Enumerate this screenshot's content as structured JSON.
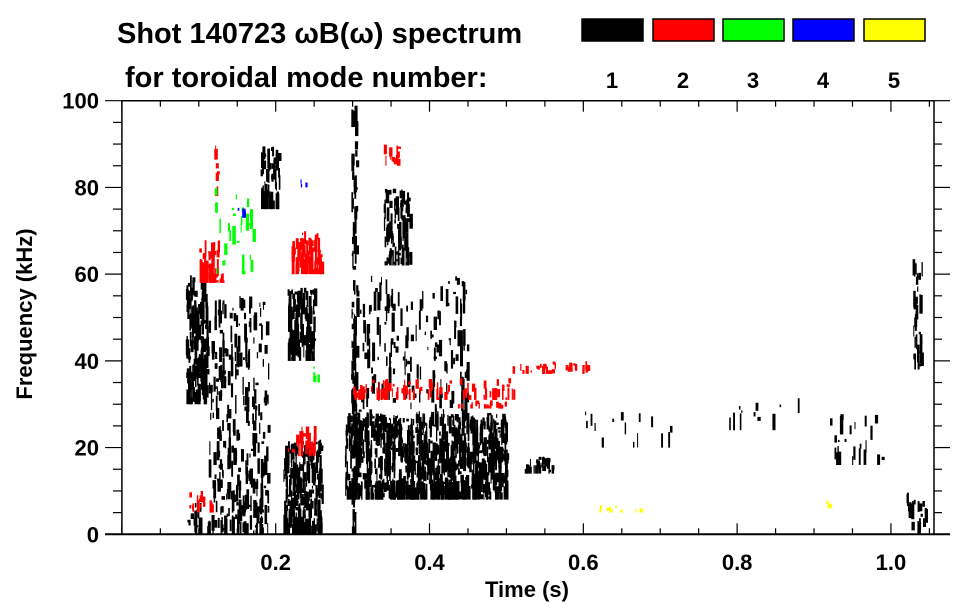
{
  "chart_data": {
    "type": "heatmap",
    "title_line1": "Shot 140723 ωB(ω) spectrum",
    "title_line2": "for toroidal mode number:",
    "xlabel": "Time (s)",
    "ylabel": "Frequency (kHz)",
    "xlim": [
      0,
      1.056
    ],
    "ylim": [
      0,
      100
    ],
    "x_ticks": [
      {
        "value": 0.2,
        "label": "0.2"
      },
      {
        "value": 0.4,
        "label": "0.4"
      },
      {
        "value": 0.6,
        "label": "0.6"
      },
      {
        "value": 0.8,
        "label": "0.8"
      },
      {
        "value": 1.0,
        "label": "1.0"
      }
    ],
    "x_minor_step": 0.05,
    "y_ticks": [
      {
        "value": 0,
        "label": "0"
      },
      {
        "value": 20,
        "label": "20"
      },
      {
        "value": 40,
        "label": "40"
      },
      {
        "value": 60,
        "label": "60"
      },
      {
        "value": 80,
        "label": "80"
      },
      {
        "value": 100,
        "label": "100"
      }
    ],
    "y_minor_step": 5,
    "legend": [
      {
        "mode": "1",
        "color": "#000000"
      },
      {
        "mode": "2",
        "color": "#ff0000"
      },
      {
        "mode": "3",
        "color": "#00ff00"
      },
      {
        "mode": "4",
        "color": "#0000ff"
      },
      {
        "mode": "5",
        "color": "#ffff00"
      }
    ],
    "features": [
      {
        "mode": 1,
        "t": [
          0.083,
          0.11
        ],
        "f": [
          30,
          60
        ],
        "density": 0.9
      },
      {
        "mode": 1,
        "t": [
          0.083,
          0.19
        ],
        "f": [
          0,
          8
        ],
        "density": 0.35
      },
      {
        "mode": 1,
        "t": [
          0.11,
          0.19
        ],
        "f": [
          5,
          55
        ],
        "density": 0.25
      },
      {
        "mode": 1,
        "t": [
          0.18,
          0.205
        ],
        "f": [
          75,
          90
        ],
        "density": 0.6
      },
      {
        "mode": 1,
        "t": [
          0.21,
          0.26
        ],
        "f": [
          0,
          22
        ],
        "density": 0.9
      },
      {
        "mode": 1,
        "t": [
          0.215,
          0.25
        ],
        "f": [
          40,
          57
        ],
        "density": 0.85
      },
      {
        "mode": 1,
        "t": [
          0.298,
          0.305
        ],
        "f": [
          0,
          100
        ],
        "density": 0.6
      },
      {
        "mode": 1,
        "t": [
          0.29,
          0.5
        ],
        "f": [
          8,
          28
        ],
        "density": 0.9
      },
      {
        "mode": 1,
        "t": [
          0.34,
          0.375
        ],
        "f": [
          62,
          80
        ],
        "density": 0.6
      },
      {
        "mode": 1,
        "t": [
          0.3,
          0.45
        ],
        "f": [
          25,
          60
        ],
        "density": 0.15
      },
      {
        "mode": 1,
        "t": [
          0.52,
          0.56
        ],
        "f": [
          14,
          18
        ],
        "density": 0.8
      },
      {
        "mode": 1,
        "t": [
          0.6,
          0.72
        ],
        "f": [
          20,
          29
        ],
        "density": 0.06
      },
      {
        "mode": 1,
        "t": [
          0.78,
          0.88
        ],
        "f": [
          24,
          32
        ],
        "density": 0.06
      },
      {
        "mode": 1,
        "t": [
          0.92,
          0.99
        ],
        "f": [
          16,
          28
        ],
        "density": 0.12
      },
      {
        "mode": 1,
        "t": [
          1.028,
          1.04
        ],
        "f": [
          38,
          64
        ],
        "density": 0.5
      },
      {
        "mode": 1,
        "t": [
          1.02,
          1.045
        ],
        "f": [
          0,
          10
        ],
        "density": 0.35
      },
      {
        "mode": 2,
        "t": [
          0.1,
          0.13
        ],
        "f": [
          58,
          68
        ],
        "density": 0.7
      },
      {
        "mode": 2,
        "t": [
          0.12,
          0.125
        ],
        "f": [
          78,
          90
        ],
        "density": 0.5
      },
      {
        "mode": 2,
        "t": [
          0.085,
          0.12
        ],
        "f": [
          5,
          10
        ],
        "density": 0.35
      },
      {
        "mode": 2,
        "t": [
          0.22,
          0.26
        ],
        "f": [
          60,
          70
        ],
        "density": 0.8
      },
      {
        "mode": 2,
        "t": [
          0.215,
          0.25
        ],
        "f": [
          18,
          25
        ],
        "density": 0.4
      },
      {
        "mode": 2,
        "t": [
          0.3,
          0.51
        ],
        "f": [
          31,
          36
        ],
        "density": 0.35
      },
      {
        "mode": 2,
        "t": [
          0.43,
          0.5
        ],
        "f": [
          29,
          31
        ],
        "density": 0.5
      },
      {
        "mode": 2,
        "t": [
          0.507,
          0.605
        ],
        "f": [
          37,
          40
        ],
        "density": 0.5
      },
      {
        "mode": 2,
        "t": [
          0.34,
          0.36
        ],
        "f": [
          85,
          90
        ],
        "density": 0.6
      },
      {
        "mode": 3,
        "t": [
          0.12,
          0.17
        ],
        "f": [
          60,
          80
        ],
        "density": 0.12
      },
      {
        "mode": 3,
        "t": [
          0.245,
          0.255
        ],
        "f": [
          35,
          40
        ],
        "density": 0.3
      },
      {
        "mode": 4,
        "t": [
          0.15,
          0.16
        ],
        "f": [
          73,
          77
        ],
        "density": 0.3
      },
      {
        "mode": 4,
        "t": [
          0.23,
          0.24
        ],
        "f": [
          80,
          82
        ],
        "density": 0.4
      },
      {
        "mode": 5,
        "t": [
          0.62,
          0.68
        ],
        "f": [
          5,
          7
        ],
        "density": 0.35
      },
      {
        "mode": 5,
        "t": [
          0.915,
          0.92
        ],
        "f": [
          6,
          8
        ],
        "density": 0.5
      }
    ]
  }
}
